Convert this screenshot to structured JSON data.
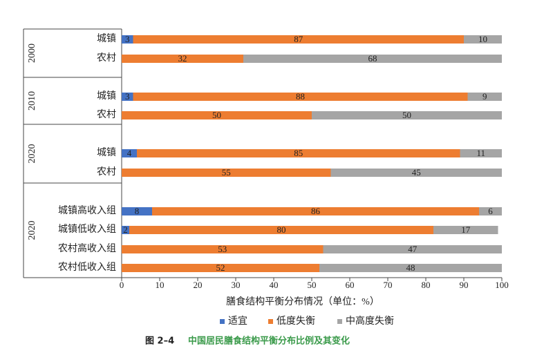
{
  "chart_data": {
    "type": "stacked_barh",
    "categories": [
      "城镇",
      "农村",
      "城镇",
      "农村",
      "城镇",
      "农村",
      "城镇高收入组",
      "城镇低收入组",
      "农村高收入组",
      "农村低收入组"
    ],
    "group_labels": [
      "2000",
      null,
      "2010",
      null,
      "2020",
      null,
      "2020",
      null,
      null,
      null
    ],
    "series": [
      {
        "name": "适宜",
        "color": "#4472c4",
        "values": [
          3,
          0,
          3,
          0,
          4,
          0,
          8,
          2,
          0,
          0
        ]
      },
      {
        "name": "低度失衡",
        "color": "#ed7d31",
        "values": [
          87,
          32,
          88,
          50,
          85,
          55,
          86,
          80,
          53,
          52
        ]
      },
      {
        "name": "中高度失衡",
        "color": "#a5a5a5",
        "values": [
          10,
          68,
          9,
          50,
          11,
          45,
          6,
          17,
          47,
          48
        ]
      }
    ],
    "xlim": [
      0,
      100
    ],
    "xticks": [
      0,
      10,
      20,
      30,
      40,
      50,
      60,
      70,
      80,
      90,
      100
    ],
    "xlabel": "膳食结构平衡分布情况（单位：%）",
    "figure_number": "图 2–4",
    "title": "中国居民膳食结构平衡分布比例及其变化",
    "title_color": "#3a9a4a",
    "legend": "bottom"
  }
}
